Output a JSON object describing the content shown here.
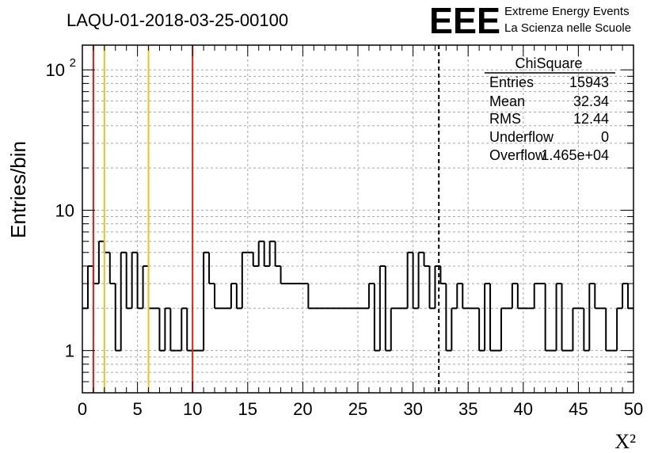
{
  "run_title": "LAQU-01-2018-03-25-00100",
  "logo": {
    "mark": "EEE",
    "line1": "Extreme Energy Events",
    "line2": "La Scienza nelle Scuole",
    "color": "#1a1aff"
  },
  "stats": {
    "title": "ChiSquare",
    "rows": [
      {
        "label": "Entries",
        "value": "15943"
      },
      {
        "label": "Mean",
        "value": "32.34"
      },
      {
        "label": "RMS",
        "value": "12.44"
      },
      {
        "label": "Underflow",
        "value": "0"
      },
      {
        "label": "Overflow",
        "value": "1.465e+04"
      }
    ]
  },
  "chart_data": {
    "type": "histogram",
    "xlabel": "X²",
    "ylabel": "Entries/bin",
    "xlim": [
      0,
      50
    ],
    "ylim": [
      0.5,
      150
    ],
    "yscale": "log",
    "grid": true,
    "bin_width": 0.5,
    "x_ticks": [
      0,
      5,
      10,
      15,
      20,
      25,
      30,
      35,
      40,
      45,
      50
    ],
    "y_ticks": [
      {
        "value": 1,
        "label": "1"
      },
      {
        "value": 10,
        "label": "10"
      },
      {
        "value": 100,
        "label": "10",
        "exp": "2"
      }
    ],
    "bin_values": [
      2,
      4,
      3,
      6,
      5,
      3,
      1,
      5,
      2,
      5,
      2,
      4,
      2,
      2,
      1,
      2,
      1,
      1,
      2,
      1,
      1,
      1,
      5,
      3,
      2,
      2,
      2,
      3,
      2,
      5,
      5,
      4,
      6,
      4,
      6,
      4,
      3,
      3,
      3,
      3,
      3,
      2,
      2,
      2,
      2,
      2,
      2,
      2,
      2,
      2,
      2,
      2,
      3,
      1,
      4,
      1,
      2,
      2,
      2,
      5,
      2,
      5,
      4,
      2,
      4,
      3,
      1,
      2,
      3,
      2,
      2,
      2,
      1,
      3,
      1,
      1,
      2,
      2,
      3,
      2,
      2,
      2,
      3,
      3,
      1,
      1,
      3,
      1,
      1,
      2,
      2,
      1,
      3,
      2,
      2,
      1,
      1,
      2,
      3,
      2
    ],
    "vertical_lines": [
      {
        "x": 1.0,
        "color": "#e01a1a",
        "style": "solid"
      },
      {
        "x": 2.0,
        "color": "#f0c020",
        "style": "solid"
      },
      {
        "x": 6.0,
        "color": "#f0c020",
        "style": "solid"
      },
      {
        "x": 10.0,
        "color": "#e01a1a",
        "style": "solid"
      },
      {
        "x": 32.34,
        "color": "#000000",
        "style": "dashed"
      }
    ]
  }
}
